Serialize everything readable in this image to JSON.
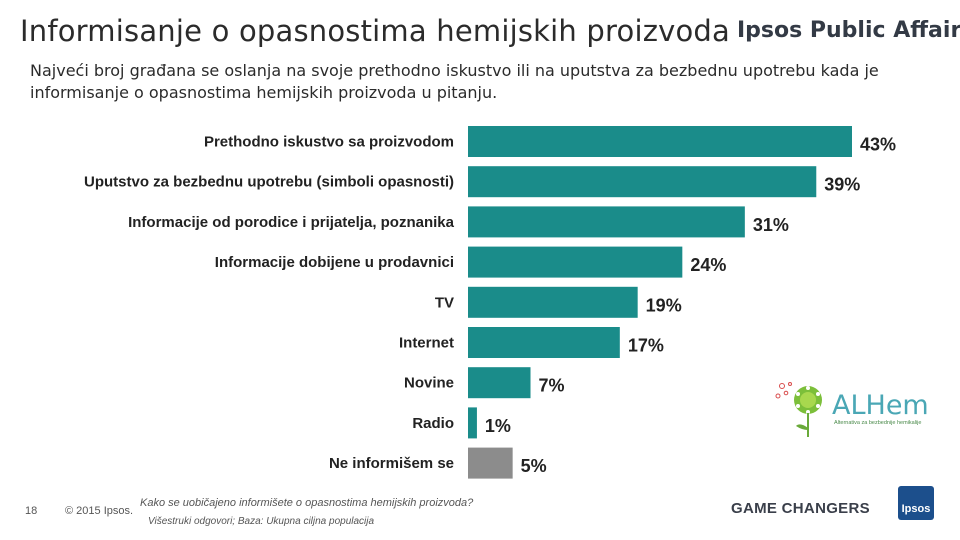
{
  "header": {
    "title": "Informisanje o opasnostima hemijskih proizvoda",
    "brand": "Ipsos Public Affairs",
    "subtitle": "Najveći broj građana se oslanja na svoje prethodno iskustvo ili na uputstva za bezbednu upotrebu kada je informisanje o opasnostima hemijskih proizvoda u pitanju."
  },
  "chart_data": {
    "type": "bar",
    "orientation": "horizontal",
    "categories": [
      "Prethodno iskustvo sa proizvodom",
      "Uputstvo za bezbednu upotrebu (simboli opasnosti)",
      "Informacije od porodice i prijatelja, poznanika",
      "Informacije dobijene u prodavnici",
      "TV",
      "Internet",
      "Novine",
      "Radio",
      "Ne informišem se"
    ],
    "values": [
      43,
      39,
      31,
      24,
      19,
      17,
      7,
      1,
      5
    ],
    "value_labels": [
      "43%",
      "39%",
      "31%",
      "24%",
      "19%",
      "17%",
      "7%",
      "1%",
      "5%"
    ],
    "colors": [
      "#1a8c8a",
      "#1a8c8a",
      "#1a8c8a",
      "#1a8c8a",
      "#1a8c8a",
      "#1a8c8a",
      "#1a8c8a",
      "#1a8c8a",
      "#8c8c8c"
    ],
    "unit": "%",
    "xlim": [
      0,
      43
    ]
  },
  "footer": {
    "page_number": "18",
    "copyright": "© 2015 Ipsos.",
    "question": "Kako se uobičajeno informišete o opasnostima hemijskih proizvoda?",
    "base": "Višestruki odgovori; Baza: Ukupna ciljna populacija",
    "tagline": "GAME CHANGERS",
    "ipsos_logo": "Ipsos"
  },
  "alhem_logo": {
    "name": "ALHem",
    "subtitle": "Alternativa za bezbednije hemikalije"
  }
}
